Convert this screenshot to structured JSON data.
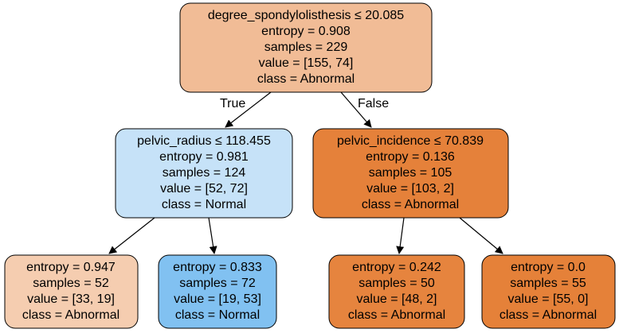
{
  "tree": {
    "edge_labels": {
      "true_label": "True",
      "false_label": "False"
    },
    "nodes": [
      {
        "id": "root",
        "fill": "#f1bc96",
        "lines": [
          "degree_spondylolisthesis ≤ 20.085",
          "entropy = 0.908",
          "samples = 229",
          "value = [155, 74]",
          "class = Abnormal"
        ]
      },
      {
        "id": "left",
        "fill": "#c6e2f8",
        "lines": [
          "pelvic_radius ≤ 118.455",
          "entropy = 0.981",
          "samples = 124",
          "value = [52, 72]",
          "class = Normal"
        ]
      },
      {
        "id": "right",
        "fill": "#e5813a",
        "lines": [
          "pelvic_incidence ≤ 70.839",
          "entropy = 0.136",
          "samples = 105",
          "value = [103, 2]",
          "class = Abnormal"
        ]
      },
      {
        "id": "ll",
        "fill": "#f5cdb0",
        "lines": [
          "entropy = 0.947",
          "samples = 52",
          "value = [33, 19]",
          "class = Abnormal"
        ]
      },
      {
        "id": "lr",
        "fill": "#81c1f1",
        "lines": [
          "entropy = 0.833",
          "samples = 72",
          "value = [19, 53]",
          "class = Normal"
        ]
      },
      {
        "id": "rl",
        "fill": "#e6843e",
        "lines": [
          "entropy = 0.242",
          "samples = 50",
          "value = [48, 2]",
          "class = Abnormal"
        ]
      },
      {
        "id": "rr",
        "fill": "#e58139",
        "lines": [
          "entropy = 0.0",
          "samples = 55",
          "value = [55, 0]",
          "class = Abnormal"
        ]
      }
    ]
  }
}
